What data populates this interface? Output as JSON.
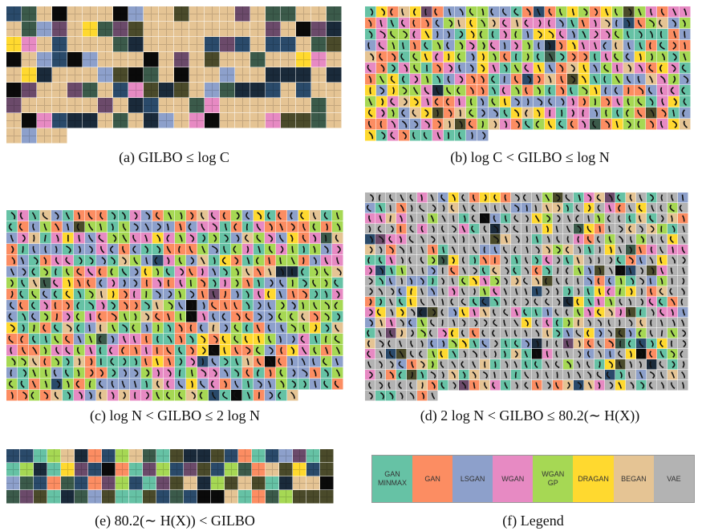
{
  "panels": [
    {
      "caption": "(a) GILBO ≤ log C"
    },
    {
      "caption": "(b) log C < GILBO ≤ log N"
    },
    {
      "caption": "(c) log N < GILBO ≤ 2 log N"
    },
    {
      "caption": "(d) 2 log N < GILBO ≤ 80.2(∼ H(X))"
    },
    {
      "caption": "(e) 80.2(∼ H(X)) < GILBO"
    }
  ],
  "legend": {
    "caption": "(f) Legend",
    "items": [
      {
        "label": "GAN MINMAX",
        "color": "#66c2a5"
      },
      {
        "label": "GAN",
        "color": "#fc8d62"
      },
      {
        "label": "LSGAN",
        "color": "#8da0cb"
      },
      {
        "label": "WGAN",
        "color": "#e78ac3"
      },
      {
        "label": "WGAN GP",
        "color": "#a6d854"
      },
      {
        "label": "DRAGAN",
        "color": "#ffd92f"
      },
      {
        "label": "BEGAN",
        "color": "#e5c494"
      },
      {
        "label": "VAE",
        "color": "#b3b3b3"
      }
    ]
  }
}
